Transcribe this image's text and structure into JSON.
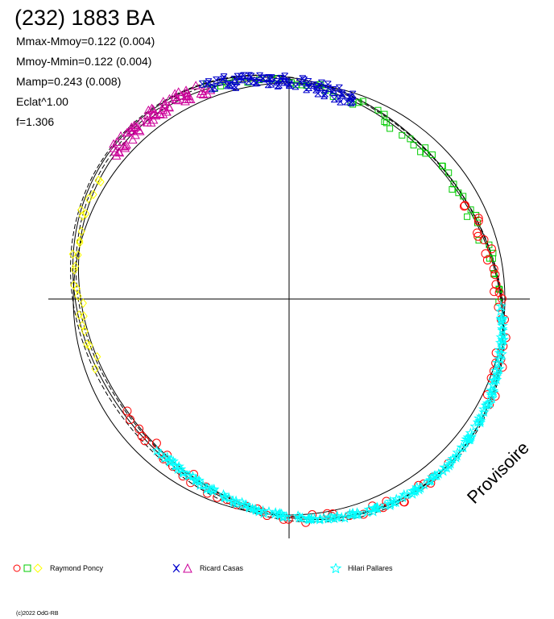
{
  "chart_data": {
    "type": "scatter",
    "title": "(232) 1883 BA",
    "stats": [
      "Mmax-Mmoy=0.122 (0.004)",
      "Mmoy-Mmin=0.122 (0.004)",
      "Mamp=0.243 (0.008)",
      "Eclat^1.00",
      "f=1.306"
    ],
    "watermark": "Provisoire",
    "copyright": "(c)2022 OdG-RB",
    "legend": [
      {
        "label": "Raymond Poncy",
        "markers": [
          "circle",
          "square",
          "diamond"
        ],
        "colors": [
          "#ff0000",
          "#00cc00",
          "#ffff00"
        ]
      },
      {
        "label": "Ricard Casas",
        "markers": [
          "star4",
          "triangle"
        ],
        "colors": [
          "#0000cc",
          "#cc0099"
        ]
      },
      {
        "label": "Hilari Pallares",
        "markers": [
          "star5"
        ],
        "colors": [
          "#00ffff"
        ]
      }
    ],
    "series": [
      {
        "name": "Raymond Poncy",
        "segments": [
          {
            "marker": "diamond",
            "color": "#ffff00",
            "phase": [
              0.7,
              0.84
            ],
            "count": 26
          },
          {
            "marker": "square",
            "color": "#00cc00",
            "phase": [
              0.94,
              1.25
            ],
            "count": 55
          },
          {
            "marker": "circle",
            "color": "#ff0000",
            "phase": [
              1.17,
              1.33
            ],
            "count": 30
          },
          {
            "marker": "circle",
            "color": "#ff0000",
            "phase": [
              1.38,
              1.65
            ],
            "count": 40
          }
        ]
      },
      {
        "name": "Ricard Casas",
        "segments": [
          {
            "marker": "triangle",
            "color": "#cc0099",
            "phase": [
              0.86,
              0.94
            ],
            "count": 70
          },
          {
            "marker": "star4",
            "color": "#0000cc",
            "phase": [
              0.94,
              1.05
            ],
            "count": 75
          }
        ]
      },
      {
        "name": "Hilari Pallares",
        "segments": [
          {
            "marker": "star5",
            "color": "#00ffff",
            "phase": [
              1.26,
              1.61
            ],
            "count": 200
          }
        ]
      }
    ],
    "axes": {
      "show_crosshair": true
    }
  }
}
